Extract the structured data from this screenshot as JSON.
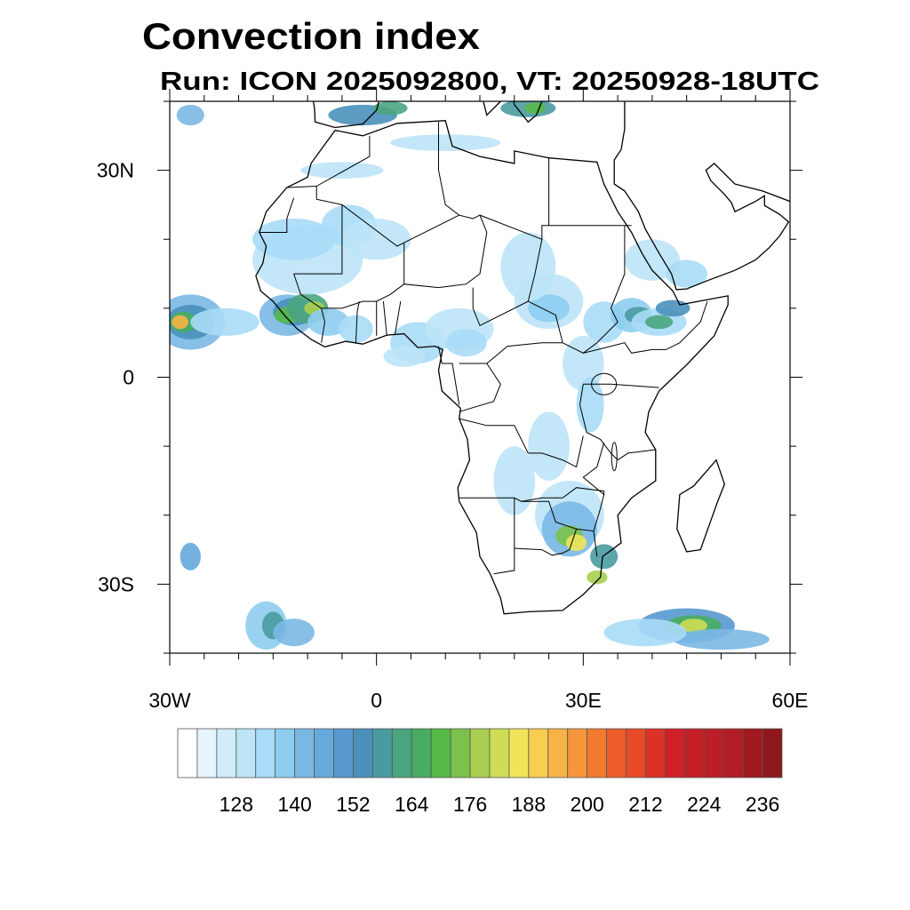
{
  "title": "Convection index",
  "subtitle": "Run: ICON 2025092800,  VT: 20250928-18UTC",
  "axes": {
    "lat_labels": [
      {
        "lat": 30,
        "text": "30N"
      },
      {
        "lat": 0,
        "text": "0"
      },
      {
        "lat": -30,
        "text": "30S"
      }
    ],
    "lon_labels": [
      {
        "lon": -30,
        "text": "30W"
      },
      {
        "lon": 0,
        "text": "0"
      },
      {
        "lon": 30,
        "text": "30E"
      },
      {
        "lon": 60,
        "text": "60E"
      }
    ],
    "lon_range": [
      -30,
      60
    ],
    "lat_range": [
      -40,
      40
    ]
  },
  "colorbar": {
    "levels_start": 120,
    "levels_step": 4,
    "labels": [
      "128",
      "140",
      "152",
      "164",
      "176",
      "188",
      "200",
      "212",
      "224",
      "236"
    ],
    "colors": [
      "#ffffff",
      "#e6f5fc",
      "#d2ecf9",
      "#bde4f7",
      "#a8dcf7",
      "#8ecdf0",
      "#7ab8e4",
      "#66a9db",
      "#5698cf",
      "#4a90bb",
      "#4a9ba0",
      "#4aa580",
      "#48ad60",
      "#56b948",
      "#7cc14c",
      "#a8cf50",
      "#cedd55",
      "#f0e55a",
      "#f8cd50",
      "#f7b446",
      "#f5963a",
      "#f27a2f",
      "#ee5e2a",
      "#e84a28",
      "#dc3128",
      "#cf2029",
      "#c41f27",
      "#bc1e27",
      "#b21c24",
      "#a2191f",
      "#8e171b"
    ]
  }
}
